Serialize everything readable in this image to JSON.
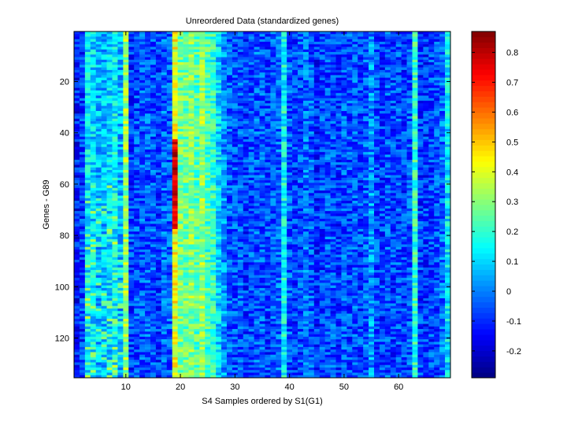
{
  "chart_data": {
    "type": "heatmap",
    "title": "Unreordered Data (standardized genes)",
    "xlabel": "S4 Samples ordered by S1(G1)",
    "ylabel": "Genes - G89",
    "xlim": [
      0.5,
      69.5
    ],
    "ylim": [
      0.5,
      135.5
    ],
    "y_direction": "reversed",
    "n_samples": 69,
    "n_genes": 135,
    "x_ticks": [
      10,
      20,
      30,
      40,
      50,
      60
    ],
    "y_ticks": [
      20,
      40,
      60,
      80,
      100,
      120
    ],
    "colorbar": {
      "colormap": "jet",
      "clim": [
        -0.29,
        0.87
      ],
      "ticks": [
        -0.2,
        -0.1,
        0,
        0.1,
        0.2,
        0.3,
        0.4,
        0.5,
        0.6,
        0.7,
        0.8
      ],
      "tick_labels": [
        "-0.2",
        "-0.1",
        "0",
        "0.1",
        "0.2",
        "0.3",
        "0.4",
        "0.5",
        "0.6",
        "0.7",
        "0.8"
      ]
    },
    "column_profile": [
      -0.12,
      -0.08,
      0.12,
      0.1,
      0.06,
      0.07,
      0.1,
      0.14,
      0.05,
      0.32,
      -0.08,
      -0.06,
      -0.05,
      -0.04,
      -0.05,
      -0.08,
      -0.03,
      -0.04,
      0.42,
      0.28,
      0.27,
      0.3,
      0.24,
      0.32,
      0.22,
      0.2,
      0.1,
      0.02,
      -0.04,
      -0.06,
      -0.05,
      -0.08,
      -0.06,
      -0.04,
      -0.05,
      -0.07,
      -0.05,
      -0.03,
      0.15,
      -0.05,
      -0.08,
      -0.06,
      -0.02,
      -0.05,
      -0.1,
      -0.07,
      -0.05,
      -0.06,
      -0.08,
      -0.05,
      -0.06,
      -0.05,
      -0.07,
      -0.04,
      0.02,
      -0.06,
      -0.08,
      -0.05,
      -0.07,
      -0.06,
      -0.08,
      -0.05,
      0.2,
      -0.08,
      -0.09,
      -0.07,
      -0.06,
      -0.02,
      0.12
    ],
    "notes": "Per-sample (column) approximate mean standardized expression; cells vary gene-to-gene around these levels. Column 19 reaches ~0.8 near genes 45-75."
  }
}
